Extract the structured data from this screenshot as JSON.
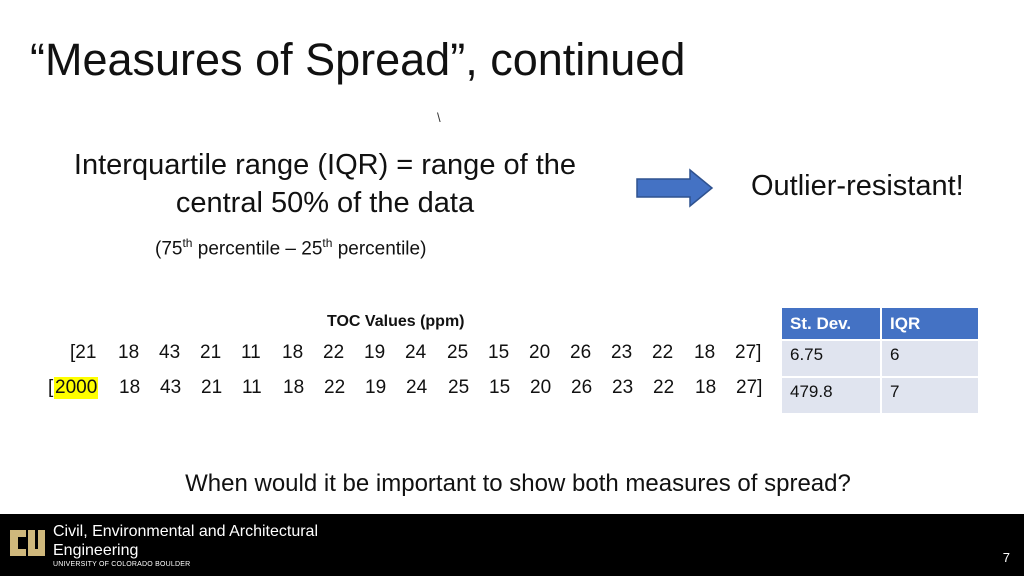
{
  "slide": {
    "title": "“Measures of Spread”, continued",
    "stray_mark": "\\",
    "definition_line1": "Interquartile range (IQR) = range of the",
    "definition_line2": "central 50% of the data",
    "percentile_note": {
      "open": "(75",
      "sup1": "th",
      "middle": " percentile – 25",
      "sup2": "th",
      "close": " percentile)"
    },
    "callout": "Outlier-resistant!",
    "toc_title": "TOC Values (ppm)",
    "row1": {
      "open": "[21",
      "values": [
        "18",
        "43",
        "21",
        "11",
        "18",
        "22",
        "19",
        "24",
        "25",
        "15",
        "20",
        "26",
        "23",
        "22",
        "18"
      ],
      "close": "27]"
    },
    "row2": {
      "open": "[",
      "highlight": "2000",
      "values": [
        "18",
        "43",
        "21",
        "11",
        "18",
        "22",
        "19",
        "24",
        "25",
        "15",
        "20",
        "26",
        "23",
        "22",
        "18"
      ],
      "close": "27]"
    },
    "stats_table": {
      "headers": [
        "St. Dev.",
        "IQR"
      ],
      "rows": [
        [
          "6.75",
          "6"
        ],
        [
          "479.8",
          "7"
        ]
      ]
    },
    "question": "When would it be important to show both measures of spread?",
    "footer": {
      "dept_line1": "Civil, Environmental and Architectural",
      "dept_line2": "Engineering",
      "university": "UNIVERSITY OF COLORADO BOULDER",
      "page_number": "7"
    },
    "colors": {
      "arrow": "#4472c4",
      "table_header": "#4472c4",
      "table_cell": "#e0e4ef",
      "highlight": "#ffff00",
      "footer_bg": "#000000",
      "logo_gold": "#cfb87c"
    }
  }
}
